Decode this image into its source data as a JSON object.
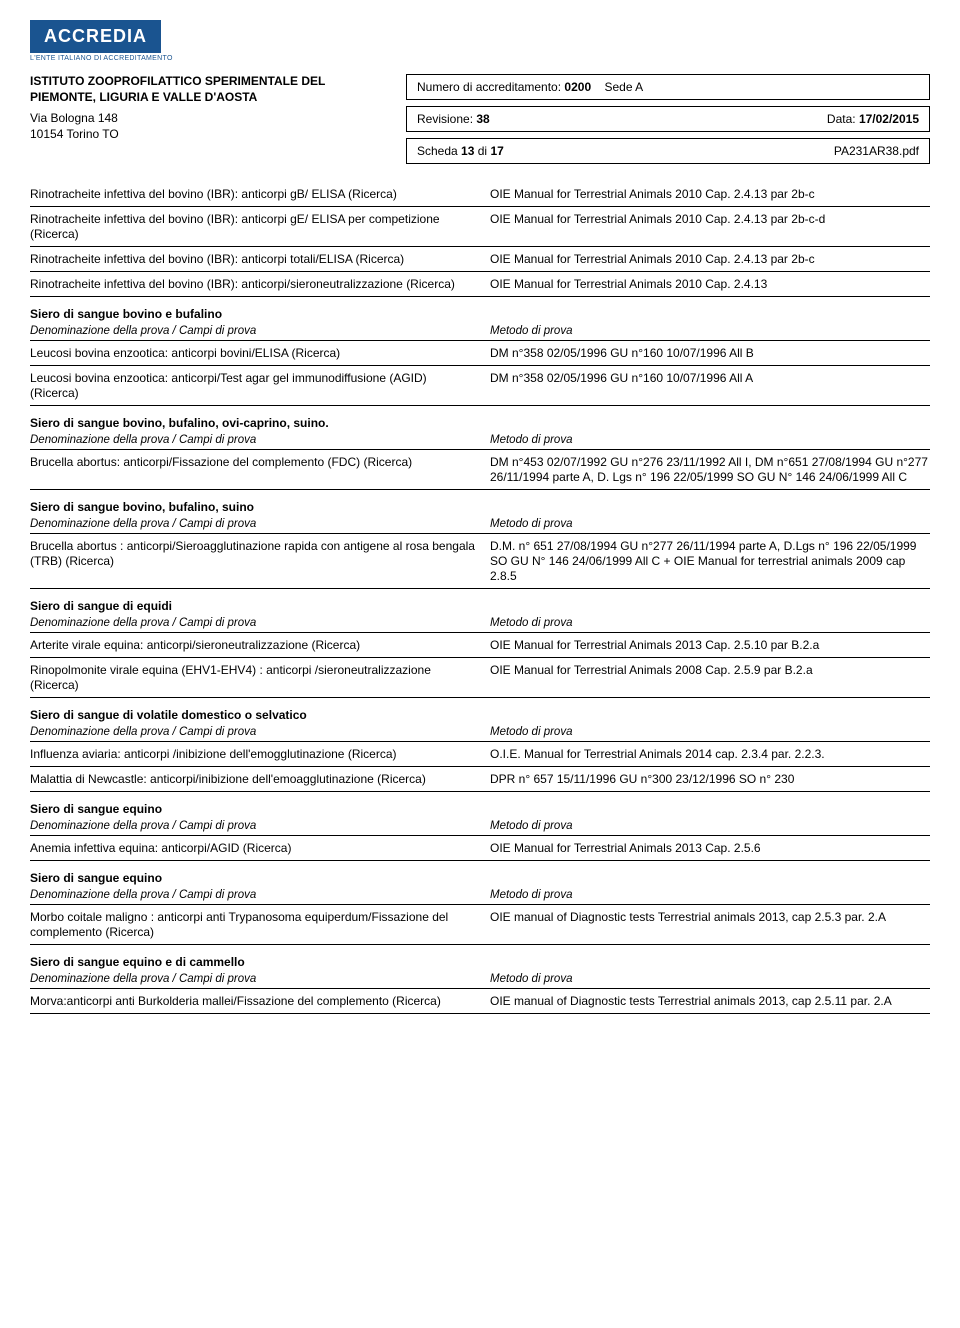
{
  "logo": {
    "text": "ACCREDIA",
    "subtitle": "L'ENTE ITALIANO DI ACCREDITAMENTO"
  },
  "header": {
    "org_line1": "ISTITUTO ZOOPROFILATTICO SPERIMENTALE DEL",
    "org_line2": "PIEMONTE, LIGURIA E VALLE D'AOSTA",
    "addr_line1": "Via Bologna 148",
    "addr_line2": "10154 Torino TO",
    "accred_label": "Numero di accreditamento:",
    "accred_num": "0200",
    "sede_label": "Sede A",
    "rev_label": "Revisione:",
    "rev_num": "38",
    "data_label": "Data:",
    "data_val": "17/02/2015",
    "scheda_label": "Scheda",
    "scheda_num": "13",
    "scheda_of": "di",
    "scheda_total": "17",
    "pdf": "PA231AR38.pdf"
  },
  "col_labels": {
    "left": "Denominazione della prova / Campi di prova",
    "right": "Metodo di prova"
  },
  "rows_top": [
    {
      "l": "Rinotracheite infettiva del bovino (IBR): anticorpi gB/ ELISA (Ricerca)",
      "r": "OIE Manual for Terrestrial Animals 2010 Cap. 2.4.13 par  2b-c"
    },
    {
      "l": "Rinotracheite infettiva del bovino (IBR): anticorpi gE/ ELISA per competizione (Ricerca)",
      "r": "OIE Manual for Terrestrial Animals 2010 Cap. 2.4.13 par 2b-c-d"
    },
    {
      "l": "Rinotracheite infettiva del bovino (IBR): anticorpi totali/ELISA (Ricerca)",
      "r": "OIE Manual for Terrestrial Animals 2010 Cap. 2.4.13 par  2b-c"
    },
    {
      "l": "Rinotracheite infettiva del bovino (IBR): anticorpi/sieroneutralizzazione (Ricerca)",
      "r": "OIE Manual for Terrestrial Animals 2010 Cap. 2.4.13"
    }
  ],
  "sections": [
    {
      "title": "Siero di sangue bovino e bufalino",
      "rows": [
        {
          "l": "Leucosi bovina enzootica: anticorpi bovini/ELISA (Ricerca)",
          "r": "DM n°358 02/05/1996 GU n°160 10/07/1996 All B"
        },
        {
          "l": "Leucosi bovina enzootica: anticorpi/Test agar gel immunodiffusione (AGID) (Ricerca)",
          "r": "DM n°358 02/05/1996 GU n°160 10/07/1996 All A"
        }
      ]
    },
    {
      "title": "Siero di sangue bovino, bufalino, ovi-caprino, suino.",
      "rows": [
        {
          "l": "Brucella abortus: anticorpi/Fissazione del complemento (FDC) (Ricerca)",
          "r": "DM n°453 02/07/1992 GU n°276 23/11/1992 All I, DM n°651 27/08/1994 GU n°277 26/11/1994 parte A, D. Lgs n° 196 22/05/1999 SO GU N° 146 24/06/1999 All C"
        }
      ]
    },
    {
      "title": "Siero di sangue bovino, bufalino, suino",
      "rows": [
        {
          "l": "Brucella abortus : anticorpi/Sieroagglutinazione rapida con antigene al rosa bengala (TRB) (Ricerca)",
          "r": "D.M. n° 651 27/08/1994 GU n°277 26/11/1994 parte A,  D.Lgs n° 196 22/05/1999 SO GU N° 146 24/06/1999 All C + OIE Manual for terrestrial animals 2009 cap 2.8.5"
        }
      ]
    },
    {
      "title": "Siero di sangue di equidi",
      "rows": [
        {
          "l": "Arterite virale equina: anticorpi/sieroneutralizzazione (Ricerca)",
          "r": "OIE Manual for Terrestrial Animals 2013 Cap. 2.5.10 par B.2.a"
        },
        {
          "l": "Rinopolmonite virale equina (EHV1-EHV4) : anticorpi /sieroneutralizzazione (Ricerca)",
          "r": "OIE Manual for Terrestrial Animals 2008 Cap. 2.5.9 par B.2.a"
        }
      ]
    },
    {
      "title": "Siero di sangue di volatile domestico o selvatico",
      "rows": [
        {
          "l": "Influenza aviaria: anticorpi /inibizione dell'emogglutinazione (Ricerca)",
          "r": "O.I.E. Manual for Terrestrial Animals 2014 cap. 2.3.4 par. 2.2.3."
        },
        {
          "l": "Malattia di Newcastle: anticorpi/inibizione dell'emoagglutinazione (Ricerca)",
          "r": "DPR n° 657 15/11/1996 GU n°300 23/12/1996 SO n° 230"
        }
      ]
    },
    {
      "title": "Siero di sangue equino",
      "rows": [
        {
          "l": "Anemia infettiva equina: anticorpi/AGID  (Ricerca)",
          "r": "OIE Manual for Terrestrial Animals 2013 Cap. 2.5.6"
        }
      ]
    },
    {
      "title": "Siero di sangue equino",
      "rows": [
        {
          "l": "Morbo coitale maligno : anticorpi anti Trypanosoma equiperdum/Fissazione del complemento (Ricerca)",
          "r": "OIE manual of Diagnostic tests Terrestrial animals 2013, cap 2.5.3 par. 2.A"
        }
      ]
    },
    {
      "title": "Siero di sangue equino e di cammello",
      "rows": [
        {
          "l": "Morva:anticorpi anti Burkolderia mallei/Fissazione del complemento (Ricerca)",
          "r": "OIE manual of Diagnostic tests Terrestrial animals 2013, cap 2.5.11 par. 2.A"
        }
      ]
    }
  ]
}
